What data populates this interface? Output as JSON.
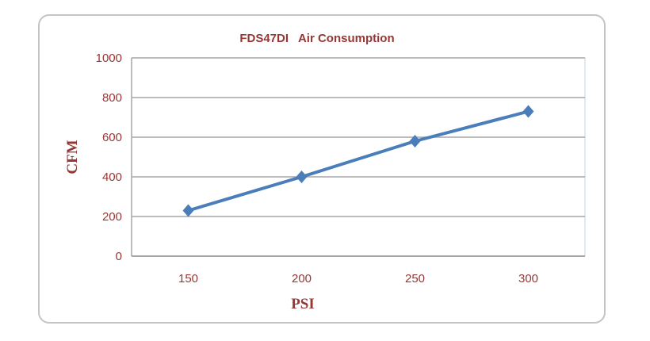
{
  "chart_data": {
    "type": "line",
    "title": "FDS47DI   Air Consumption",
    "xlabel": "PSI",
    "ylabel": "CFM",
    "categories": [
      "150",
      "200",
      "250",
      "300"
    ],
    "series": [
      {
        "name": "CFM",
        "values": [
          230,
          400,
          580,
          730
        ],
        "color": "#4a7ebb"
      }
    ],
    "ylim": [
      0,
      1000
    ],
    "yticks": [
      "0",
      "200",
      "400",
      "600",
      "800",
      "1000"
    ],
    "grid": true,
    "legend": "none"
  }
}
